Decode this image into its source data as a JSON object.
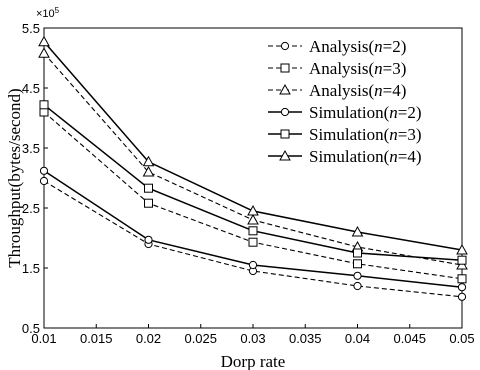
{
  "chart_data": {
    "type": "line",
    "xlabel": "Dorp rate",
    "ylabel": "Throughput(bytes/second)",
    "y_multiplier_label": "×10",
    "y_multiplier_exp": "5",
    "xlim": [
      0.01,
      0.05
    ],
    "ylim": [
      0.5,
      5.5
    ],
    "xticks": [
      "0.01",
      "0.015",
      "0.02",
      "0.025",
      "0.03",
      "0.035",
      "0.04",
      "0.045",
      "0.05"
    ],
    "yticks": [
      "0.5",
      "1.5",
      "2.5",
      "3.5",
      "4.5",
      "5.5"
    ],
    "grid": false,
    "legend_position": "top-right",
    "x": [
      0.01,
      0.02,
      0.03,
      0.04,
      0.05
    ],
    "series": [
      {
        "name_prefix": "Analysis(",
        "name_var": "n",
        "name_suffix": "=2)",
        "marker": "circle",
        "dashed": true,
        "values": [
          2.95,
          1.9,
          1.45,
          1.2,
          1.02
        ]
      },
      {
        "name_prefix": "Analysis(",
        "name_var": "n",
        "name_suffix": "=3)",
        "marker": "square",
        "dashed": true,
        "values": [
          4.1,
          2.58,
          1.93,
          1.57,
          1.32
        ]
      },
      {
        "name_prefix": "Analysis(",
        "name_var": "n",
        "name_suffix": "=4)",
        "marker": "triangle",
        "dashed": true,
        "values": [
          5.08,
          3.1,
          2.3,
          1.85,
          1.55
        ]
      },
      {
        "name_prefix": "Simulation(",
        "name_var": "n",
        "name_suffix": "=2)",
        "marker": "circle",
        "dashed": false,
        "values": [
          3.12,
          1.97,
          1.55,
          1.37,
          1.18
        ]
      },
      {
        "name_prefix": "Simulation(",
        "name_var": "n",
        "name_suffix": "=3)",
        "marker": "square",
        "dashed": false,
        "values": [
          4.22,
          2.83,
          2.12,
          1.75,
          1.63
        ]
      },
      {
        "name_prefix": "Simulation(",
        "name_var": "n",
        "name_suffix": "=4)",
        "marker": "triangle",
        "dashed": false,
        "values": [
          5.27,
          3.27,
          2.45,
          2.1,
          1.8
        ]
      }
    ]
  }
}
